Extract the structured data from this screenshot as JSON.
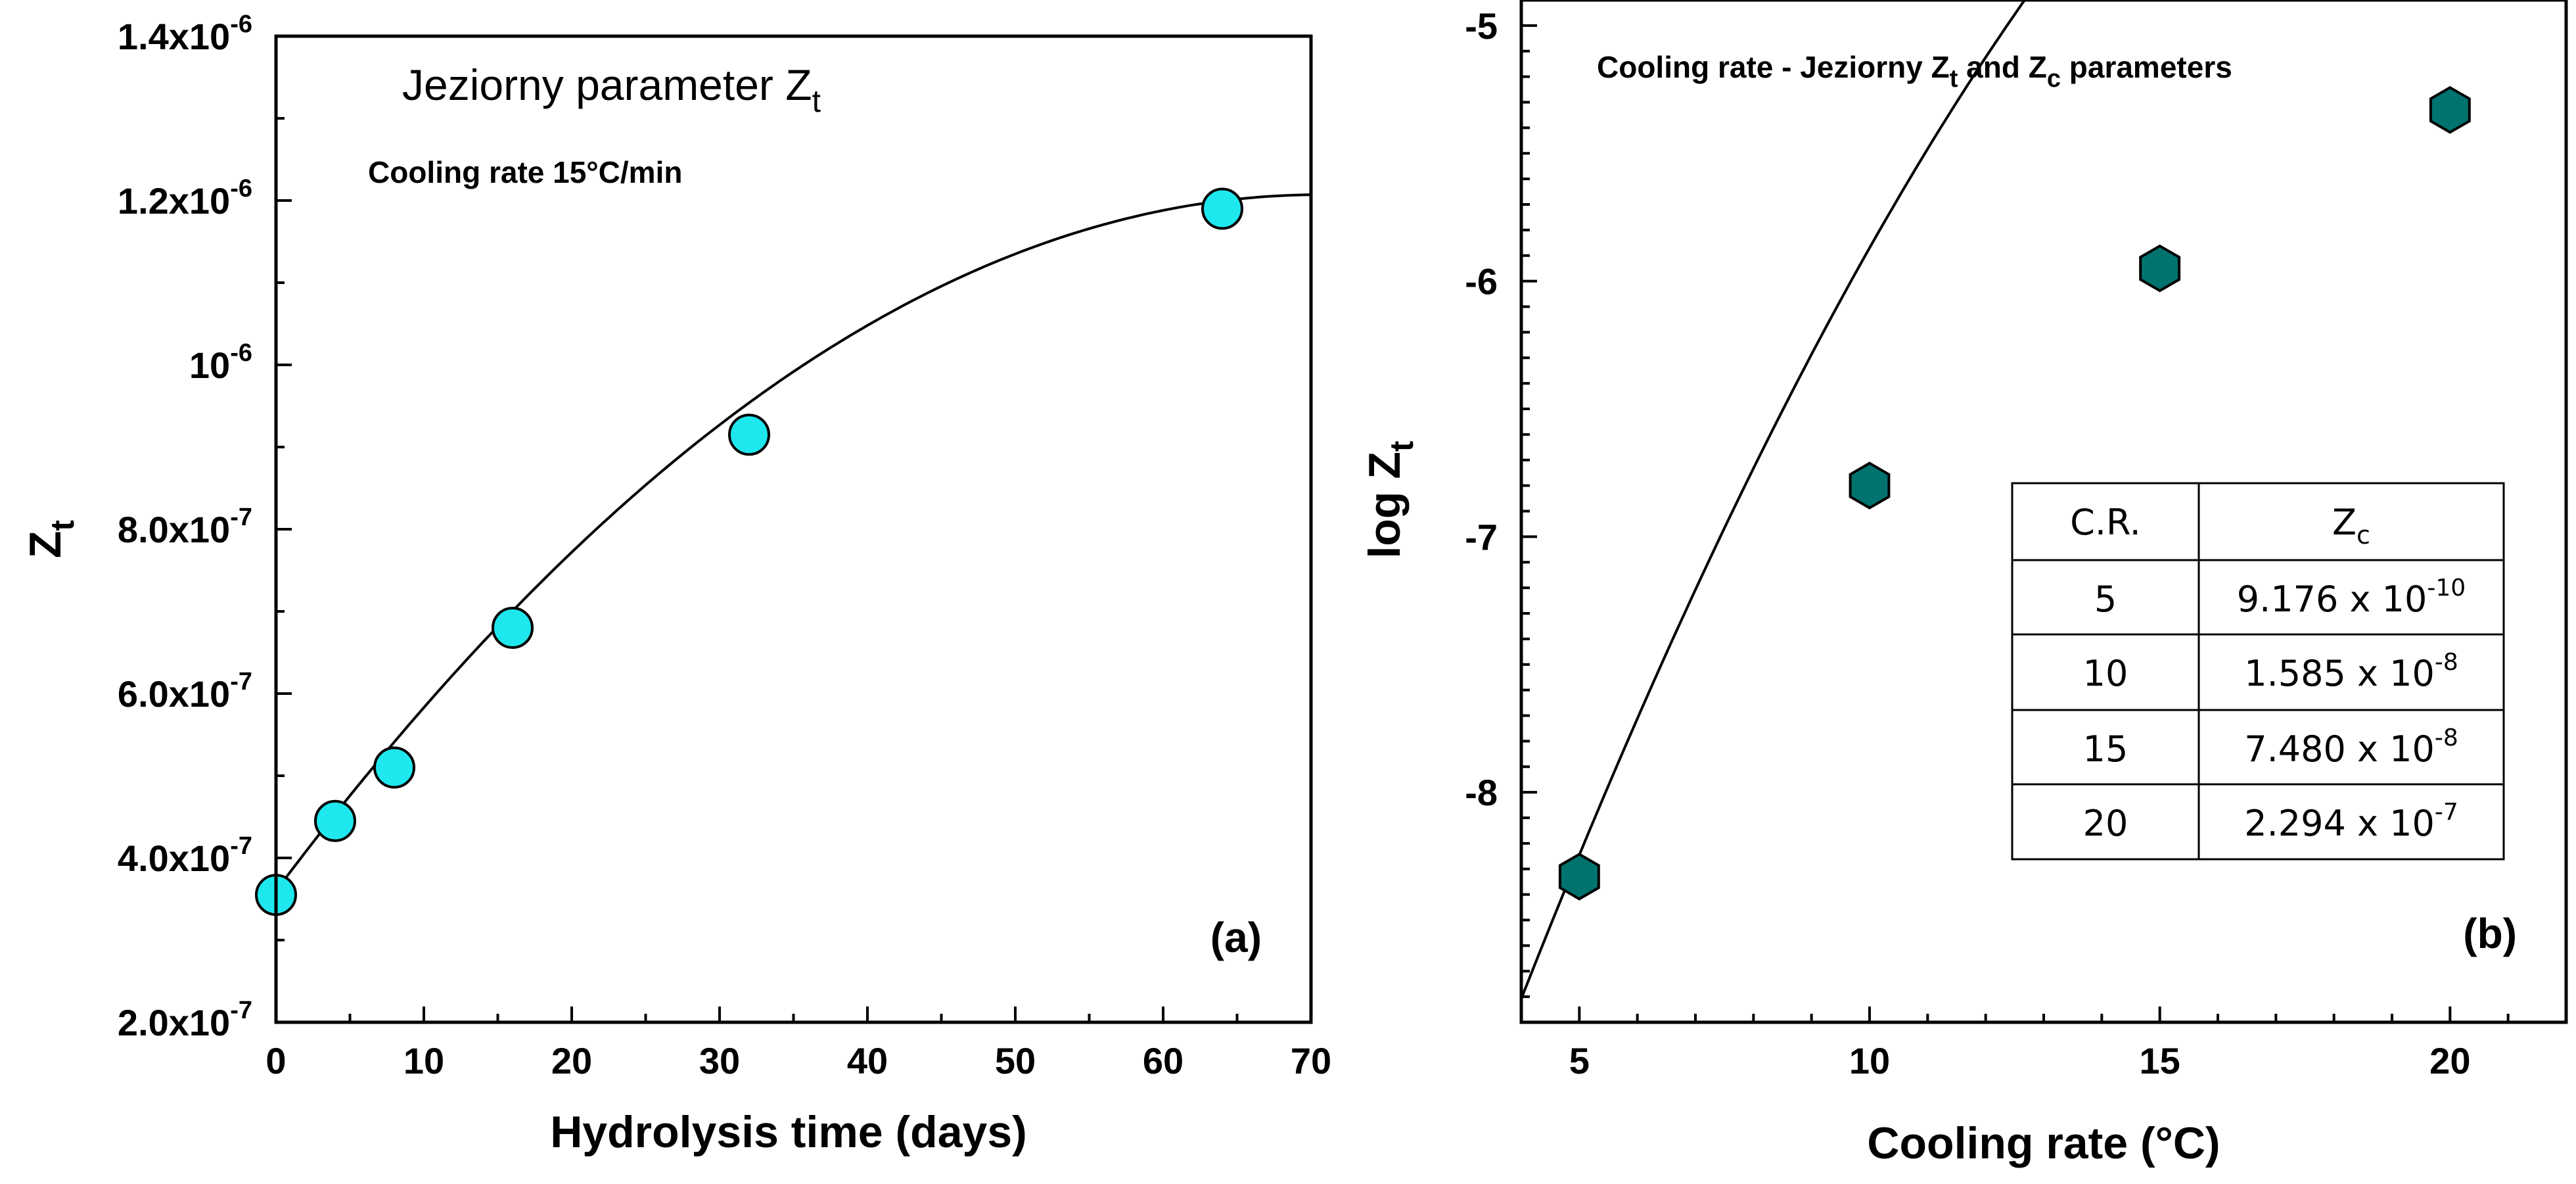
{
  "chart_data": [
    {
      "id": "a",
      "type": "scatter",
      "title": "Jeziorny parameter Z",
      "title_subscript": "t",
      "subtitle": "Cooling rate 15°C/min",
      "panel_label": "(a)",
      "xlabel": "Hydrolysis time (days)",
      "ylabel": "Z",
      "ylabel_subscript": "t",
      "xlim": [
        0,
        70
      ],
      "ylim": [
        2e-07,
        1.4e-06
      ],
      "x_ticks": [
        0,
        10,
        20,
        30,
        40,
        50,
        60,
        70
      ],
      "x_tick_labels": [
        "0",
        "10",
        "20",
        "30",
        "40",
        "50",
        "60",
        "70"
      ],
      "y_ticks": [
        {
          "value": 2e-07,
          "mantissa": "2.0x10",
          "exp": "-7"
        },
        {
          "value": 4e-07,
          "mantissa": "4.0x10",
          "exp": "-7"
        },
        {
          "value": 6e-07,
          "mantissa": "6.0x10",
          "exp": "-7"
        },
        {
          "value": 8e-07,
          "mantissa": "8.0x10",
          "exp": "-7"
        },
        {
          "value": 1e-06,
          "mantissa": "10",
          "exp": "-6"
        },
        {
          "value": 1.2e-06,
          "mantissa": "1.2x10",
          "exp": "-6"
        },
        {
          "value": 1.4e-06,
          "mantissa": "1.4x10",
          "exp": "-6"
        }
      ],
      "series": [
        {
          "name": "data",
          "x": [
            0,
            4,
            8,
            16,
            32,
            64
          ],
          "y": [
            3.55e-07,
            4.45e-07,
            5.1e-07,
            6.8e-07,
            9.15e-07,
            1.19e-06
          ]
        }
      ],
      "fit": {
        "type": "quadratic",
        "coefficients": [
          3.6e-07,
          2.4e-08,
          -1.7e-10
        ],
        "x_range": [
          0,
          70
        ]
      },
      "colors": {
        "marker": "#1ee8ee"
      }
    },
    {
      "id": "b",
      "type": "scatter",
      "title_parts": [
        {
          "text": "Cooling rate - Jeziorny Z"
        },
        {
          "text": "t",
          "sub": true
        },
        {
          "text": " and Z"
        },
        {
          "text": "c",
          "sub": true
        },
        {
          "text": " parameters"
        }
      ],
      "panel_label": "(b)",
      "xlabel": "Cooling rate (°C)",
      "ylabel": "log Z",
      "ylabel_subscript": "t",
      "xlim": [
        4,
        22
      ],
      "ylim": [
        -8.9,
        -4.9
      ],
      "x_ticks": [
        5,
        10,
        15,
        20
      ],
      "x_tick_labels": [
        "5",
        "10",
        "15",
        "20"
      ],
      "y_ticks": [
        -5,
        -6,
        -7,
        -8
      ],
      "y_tick_labels": [
        "-5",
        "-6",
        "-7",
        "-8"
      ],
      "series": [
        {
          "name": "data",
          "x": [
            5,
            10,
            15,
            20
          ],
          "y": [
            -8.33,
            -6.8,
            -5.95,
            -5.33
          ]
        }
      ],
      "fit": {
        "type": "quadratic",
        "coefficients": [
          -11.35,
          0.694,
          -0.0146
        ],
        "x_range": [
          4,
          22
        ]
      },
      "colors": {
        "marker": "#00736f"
      },
      "table": {
        "headers": [
          {
            "text": "C.R."
          },
          {
            "text": "Z",
            "sub": "c"
          }
        ],
        "rows": [
          {
            "cr": "5",
            "mantissa": "9.176 x 10",
            "exp": "-10"
          },
          {
            "cr": "10",
            "mantissa": "1.585 x 10",
            "exp": "-8"
          },
          {
            "cr": "15",
            "mantissa": "7.480 x 10",
            "exp": "-8"
          },
          {
            "cr": "20",
            "mantissa": "2.294 x 10",
            "exp": "-7"
          }
        ]
      }
    }
  ]
}
